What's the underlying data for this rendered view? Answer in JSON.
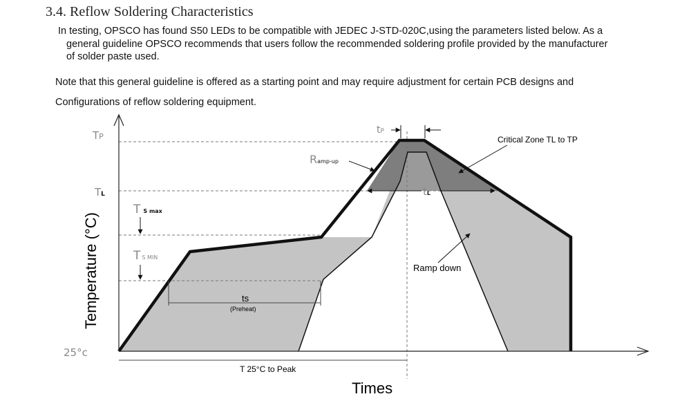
{
  "section": {
    "heading": "3.4. Reflow Soldering Characteristics",
    "paragraph1": [
      "In testing, OPSCO has found S50 LEDs to be compatible with JEDEC J-STD-020C,using the parameters listed below. As a",
      "general guideline OPSCO recommends that users follow the recommended soldering profile provided by the manufacturer",
      "of solder paste used."
    ],
    "paragraph2": [
      "Note that this general guideline is offered as a starting point and may require adjustment for certain PCB designs and",
      "Configurations of reflow soldering equipment."
    ]
  },
  "diagram": {
    "y_axis_label": "Temperature (°C)",
    "x_axis_label": "Times",
    "y_marks": {
      "tp": {
        "main": "T",
        "sub": "P"
      },
      "tl": {
        "main": "T",
        "sub": "L"
      },
      "ts_max": {
        "main": "T",
        "sub": "S max"
      },
      "ts_min": {
        "main": "T",
        "sub": "S MIN"
      },
      "ambient": "25°c"
    },
    "tp_time": {
      "main": "t",
      "sub": "P"
    },
    "tl_time": {
      "main": "t",
      "sub": "L"
    },
    "ramp_up": {
      "main": "R",
      "sub": "amp-up"
    },
    "critical_zone": "Critical Zone  TL to TP",
    "ramp_down": "Ramp down",
    "preheat": {
      "main": "ts",
      "sub": "(Preheat)"
    },
    "to_peak": "T 25°C to Peak",
    "colors": {
      "profile": "#111111",
      "light_fill": "#c4c4c4",
      "dark_fill": "#7e7e7e",
      "guide": "#888888"
    }
  }
}
